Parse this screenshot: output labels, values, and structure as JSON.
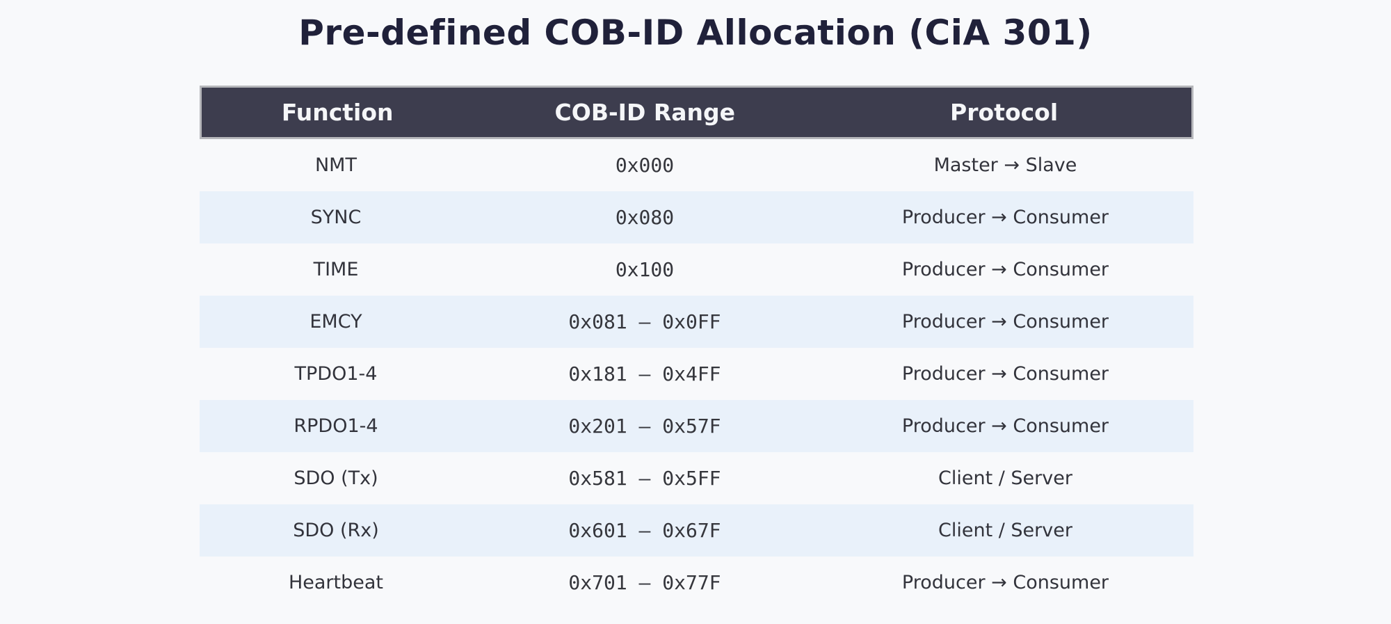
{
  "title": "Pre-defined COB-ID Allocation (CiA 301)",
  "colors": {
    "background": "#f8f9fb",
    "title_text": "#20213a",
    "header_bg": "#3d3d4e",
    "header_text": "#f5f6f8",
    "header_border": "#b6b7bb",
    "row_alt_bg": "#e9f1fa",
    "body_text": "#32333b",
    "mono_text": "#35363c"
  },
  "chart_data": {
    "type": "table",
    "title": "Pre-defined COB-ID Allocation (CiA 301)",
    "columns": [
      "Function",
      "COB-ID Range",
      "Protocol"
    ],
    "rows": [
      [
        "NMT",
        "0x000",
        "Master → Slave"
      ],
      [
        "SYNC",
        "0x080",
        "Producer → Consumer"
      ],
      [
        "TIME",
        "0x100",
        "Producer → Consumer"
      ],
      [
        "EMCY",
        "0x081 — 0x0FF",
        "Producer → Consumer"
      ],
      [
        "TPDO1-4",
        "0x181 — 0x4FF",
        "Producer → Consumer"
      ],
      [
        "RPDO1-4",
        "0x201 — 0x57F",
        "Producer → Consumer"
      ],
      [
        "SDO (Tx)",
        "0x581 — 0x5FF",
        "Client / Server"
      ],
      [
        "SDO (Rx)",
        "0x601 — 0x67F",
        "Client / Server"
      ],
      [
        "Heartbeat",
        "0x701 — 0x77F",
        "Producer → Consumer"
      ]
    ],
    "layout": {
      "striped_rows": "rows 2,4,6,8 highlighted light blue",
      "alignment": "center",
      "header_style": "dark bar with light gray border",
      "cob_id_font": "monospace"
    }
  }
}
